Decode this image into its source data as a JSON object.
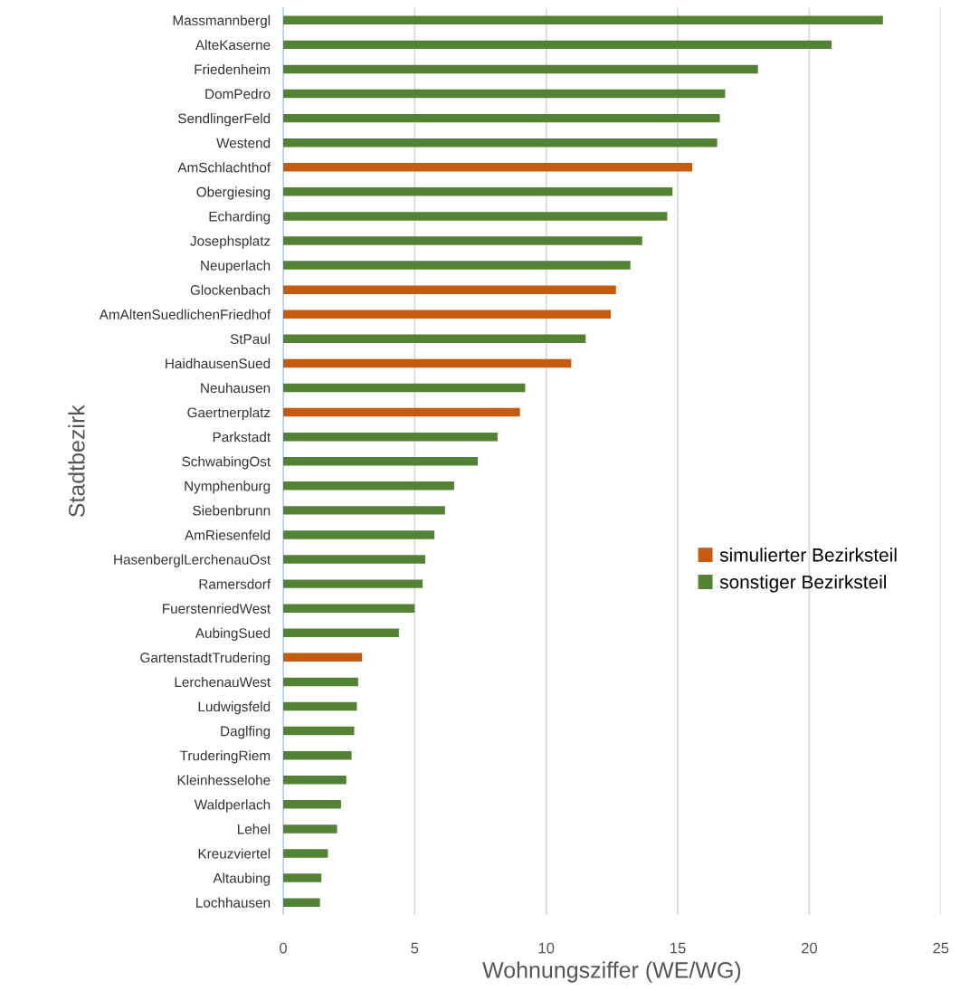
{
  "chart_data": {
    "type": "bar",
    "orientation": "horizontal",
    "xlabel": "Wohnungsziffer (WE/WG)",
    "ylabel": "Stadtbezirk",
    "categories": [
      "Massmannbergl",
      "AlteKaserne",
      "Friedenheim",
      "DomPedro",
      "SendlingerFeld",
      "Westend",
      "AmSchlachthof",
      "Obergiesing",
      "Echarding",
      "Josephsplatz",
      "Neuperlach",
      "Glockenbach",
      "AmAltenSuedlichenFriedhof",
      "StPaul",
      "HaidhausenSued",
      "Neuhausen",
      "Gaertnerplatz",
      "Parkstadt",
      "SchwabingOst",
      "Nymphenburg",
      "Siebenbrunn",
      "AmRiesenfeld",
      "HasenberglLerchenauOst",
      "Ramersdorf",
      "FuerstenriedWest",
      "AubingSued",
      "GartenstadtTrudering",
      "LerchenauWest",
      "Ludwigsfeld",
      "Daglfing",
      "TruderingRiem",
      "Kleinhesselohe",
      "Waldperlach",
      "Lehel",
      "Kreuzviertel",
      "Altaubing",
      "Lochhausen"
    ],
    "series": [
      {
        "name": "simulierter Bezirksteil",
        "color": "#c55a11",
        "values": [
          null,
          null,
          null,
          null,
          null,
          null,
          15.55,
          null,
          null,
          null,
          null,
          12.65,
          12.45,
          null,
          10.95,
          null,
          9.0,
          null,
          null,
          null,
          null,
          null,
          null,
          null,
          null,
          null,
          3.0,
          null,
          null,
          null,
          null,
          null,
          null,
          null,
          null,
          null,
          null
        ]
      },
      {
        "name": "sonstiger Bezirksteil",
        "color": "#548235",
        "values": [
          22.8,
          20.85,
          18.05,
          16.8,
          16.6,
          16.5,
          null,
          14.8,
          14.6,
          13.65,
          13.2,
          null,
          null,
          11.5,
          null,
          9.2,
          null,
          8.15,
          7.4,
          6.5,
          6.15,
          5.75,
          5.4,
          5.3,
          5.0,
          4.4,
          null,
          2.85,
          2.8,
          2.7,
          2.6,
          2.4,
          2.2,
          2.05,
          1.7,
          1.45,
          1.4
        ]
      }
    ],
    "xlim": [
      0,
      25
    ],
    "xticks": [
      0,
      5,
      10,
      15,
      20,
      25
    ],
    "grid": "x",
    "legend": "right"
  }
}
